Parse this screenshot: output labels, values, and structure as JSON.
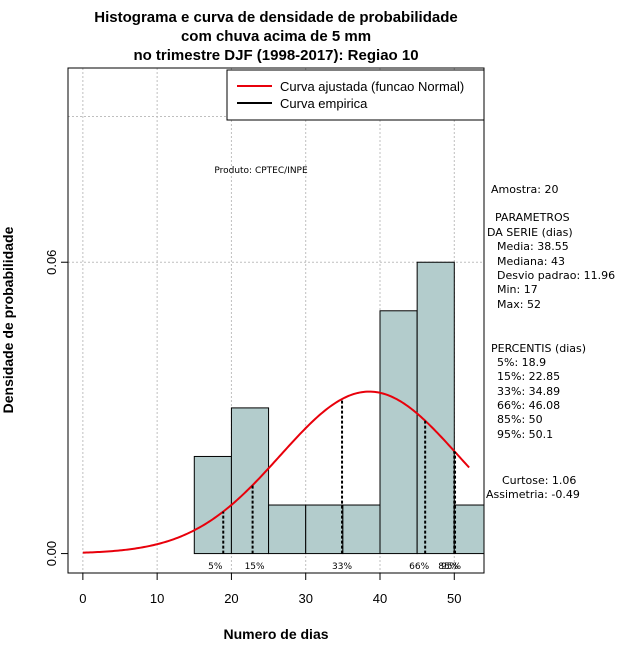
{
  "chart_data": {
    "type": "bar",
    "title": [
      "Histograma e curva de densidade de probabilidade",
      "com chuva acima de 5 mm",
      "no trimestre DJF (1998-2017): Regiao 10"
    ],
    "xlabel": "Numero de dias",
    "ylabel": "Densidade de probabilidade",
    "xlim": [
      -2,
      54
    ],
    "ylim": [
      -0.004,
      0.1
    ],
    "x_ticks": [
      0,
      10,
      20,
      30,
      40,
      50
    ],
    "y_ticks": [
      0.0,
      0.06
    ],
    "y_tick_labels": [
      "0.00",
      "0.06"
    ],
    "grid_x": [
      0,
      10,
      20,
      30,
      40,
      50
    ],
    "grid_y": [
      0.06,
      0.09
    ],
    "bins": [
      {
        "start": 15,
        "end": 20,
        "density": 0.02
      },
      {
        "start": 20,
        "end": 25,
        "density": 0.03
      },
      {
        "start": 25,
        "end": 30,
        "density": 0.01
      },
      {
        "start": 30,
        "end": 35,
        "density": 0.01
      },
      {
        "start": 35,
        "end": 40,
        "density": 0.01
      },
      {
        "start": 40,
        "end": 45,
        "density": 0.05
      },
      {
        "start": 45,
        "end": 50,
        "density": 0.06
      },
      {
        "start": 50,
        "end": 55,
        "density": 0.01
      }
    ],
    "normal_fit": {
      "mean": 38.55,
      "sd": 11.96,
      "x_from": 0,
      "x_to": 52
    },
    "percentile_markers": [
      {
        "label": "5%",
        "x": 18.9
      },
      {
        "label": "15%",
        "x": 22.85
      },
      {
        "label": "33%",
        "x": 34.89
      },
      {
        "label": "66%",
        "x": 46.08
      },
      {
        "label": "85%",
        "x": 50
      },
      {
        "label": "95%",
        "x": 50.1
      }
    ],
    "legend": [
      {
        "label": "Curva ajustada (funcao Normal)",
        "color": "#e8000b"
      },
      {
        "label": "Curva empirica",
        "color": "#000000"
      }
    ],
    "legend_position": "top-right",
    "credit": "Produto: CPTEC/INPE",
    "colors": {
      "bar_fill": "#b3cccc",
      "curve": "#e8000b",
      "grid": "#bfbfbf"
    }
  },
  "stats_panel": {
    "sample": "Amostra: 20",
    "params_header": [
      "PARAMETROS",
      "DA SERIE (dias)"
    ],
    "params": [
      "Media: 38.55",
      "Mediana: 43",
      "Desvio padrao: 11.96",
      "Min: 17",
      "Max: 52"
    ],
    "percentis_header": "PERCENTIS (dias)",
    "percentis": [
      "5%: 18.9",
      "15%: 22.85",
      "33%: 34.89",
      "66%: 46.08",
      "85%: 50",
      "95%: 50.1"
    ],
    "shape": [
      "Curtose: 1.06",
      "Assimetria: -0.49"
    ]
  }
}
